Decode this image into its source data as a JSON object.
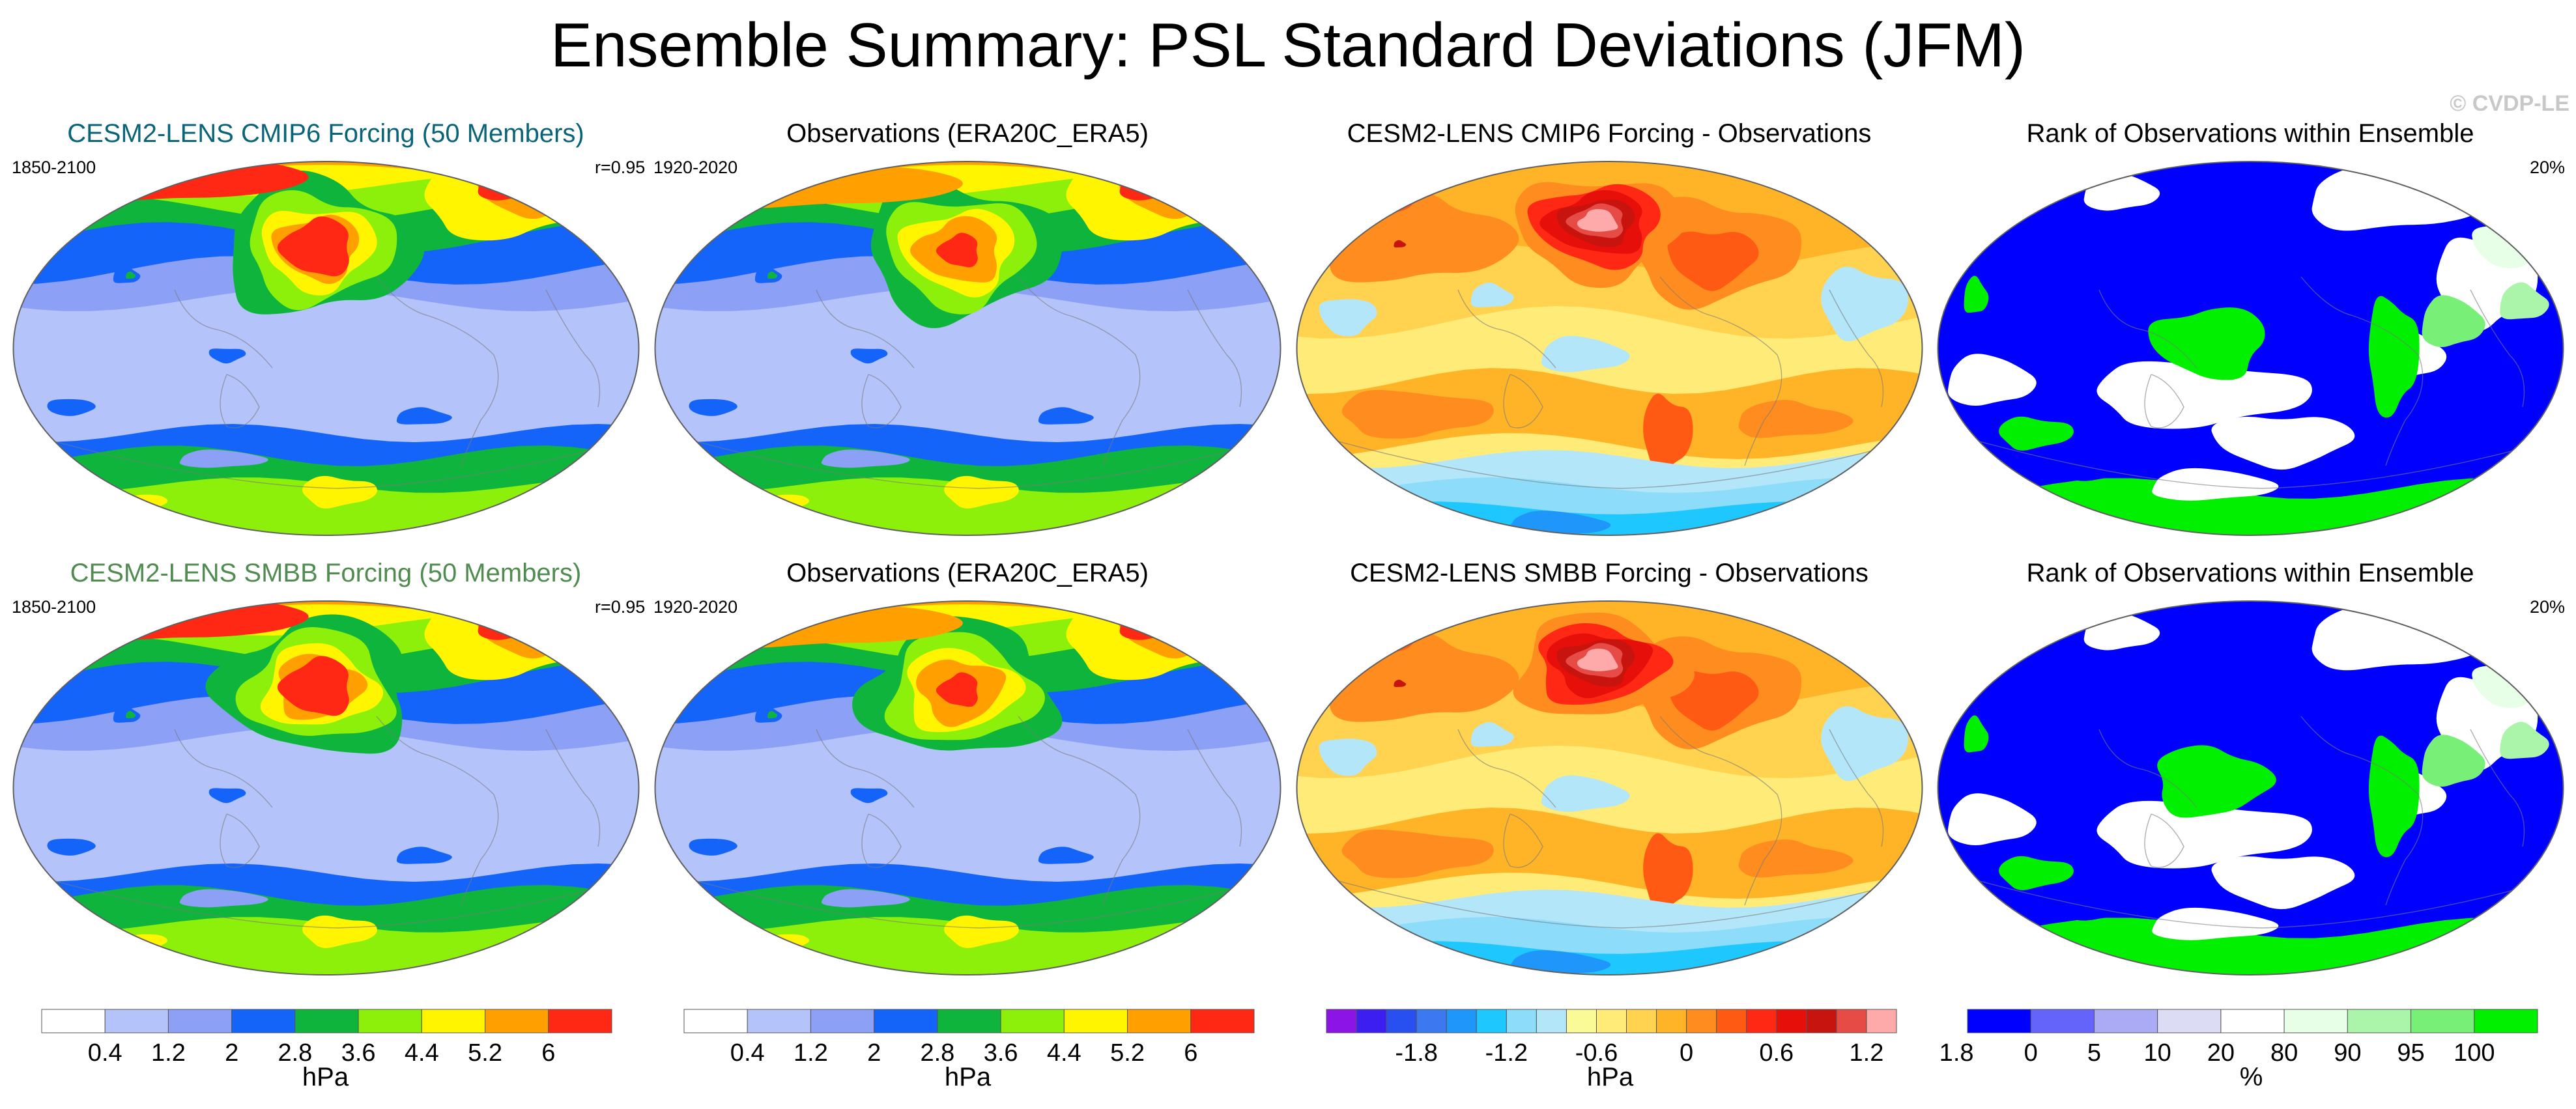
{
  "title": "Ensemble Summary: PSL Standard Deviations (JFM)",
  "watermark": "© CVDP-LE",
  "colors": {
    "std_scale": [
      "#ffffff",
      "#b4c3fa",
      "#8ca0f5",
      "#1464fa",
      "#0fb43c",
      "#8cf00a",
      "#fff500",
      "#ffa000",
      "#ff2814"
    ],
    "diff_scale": [
      "#8c14e6",
      "#3c1ef0",
      "#2850f0",
      "#3c78f0",
      "#1e96fa",
      "#1ec8ff",
      "#8cdcfa",
      "#b4e6fa",
      "#fafa96",
      "#ffeb78",
      "#ffd250",
      "#ffb428",
      "#ff8c1e",
      "#ff5a14",
      "#ff2814",
      "#e60f0a",
      "#c8140f",
      "#e64b46",
      "#ffaaaa"
    ],
    "rank_scale": [
      "#0000ff",
      "#6464fa",
      "#aaaaf5",
      "#dcdcf5",
      "#ffffff",
      "#e6ffe6",
      "#aaf5aa",
      "#78f078",
      "#00f000"
    ],
    "title_row1": "#0a6478",
    "title_row2": "#508c50"
  },
  "panels": [
    {
      "title": "CESM2-LENS CMIP6 Forcing (50 Members)",
      "left": "1850-2100",
      "right": "r=0.95",
      "kind": "std",
      "variant": "model"
    },
    {
      "title": "Observations (ERA20C_ERA5)",
      "left": "1920-2020",
      "right": "",
      "kind": "std",
      "variant": "obs"
    },
    {
      "title": "CESM2-LENS CMIP6 Forcing - Observations",
      "left": "",
      "right": "",
      "kind": "diff",
      "variant": "diff"
    },
    {
      "title": "Rank of Observations within Ensemble",
      "left": "",
      "right": "20%",
      "kind": "rank",
      "variant": "rank"
    },
    {
      "title": "CESM2-LENS SMBB Forcing (50 Members)",
      "left": "1850-2100",
      "right": "r=0.95",
      "kind": "std",
      "variant": "model"
    },
    {
      "title": "Observations (ERA20C_ERA5)",
      "left": "1920-2020",
      "right": "",
      "kind": "std",
      "variant": "obs"
    },
    {
      "title": "CESM2-LENS SMBB Forcing - Observations",
      "left": "",
      "right": "",
      "kind": "diff",
      "variant": "diff"
    },
    {
      "title": "Rank of Observations within Ensemble",
      "left": "",
      "right": "20%",
      "kind": "rank",
      "variant": "rank"
    }
  ],
  "colorbars": [
    {
      "unit": "hPa",
      "ticks": [
        "0.4",
        "1.2",
        "2",
        "2.8",
        "3.6",
        "4.4",
        "5.2",
        "6"
      ]
    },
    {
      "unit": "hPa",
      "ticks": [
        "0.4",
        "1.2",
        "2",
        "2.8",
        "3.6",
        "4.4",
        "5.2",
        "6"
      ]
    },
    {
      "unit": "hPa",
      "ticks": [
        "-1.8",
        "-1.2",
        "-0.6",
        "0",
        "0.6",
        "1.2",
        "1.8"
      ]
    },
    {
      "unit": "%",
      "ticks": [
        "0",
        "5",
        "10",
        "20",
        "80",
        "90",
        "95",
        "100"
      ]
    }
  ],
  "chart_data": [
    {
      "type": "heatmap",
      "title": "CESM2-LENS CMIP6 Forcing (50 Members)",
      "period": "1850-2100",
      "pattern_correlation": 0.95,
      "unit": "hPa",
      "contour_levels": [
        0.4,
        0.8,
        1.2,
        1.6,
        2,
        2.4,
        2.8,
        3.2,
        3.6,
        4,
        4.4,
        4.8,
        5.2,
        5.6,
        6
      ]
    },
    {
      "type": "heatmap",
      "title": "Observations (ERA20C_ERA5)",
      "period": "1920-2020",
      "unit": "hPa",
      "contour_levels": [
        0.4,
        0.8,
        1.2,
        1.6,
        2,
        2.4,
        2.8,
        3.2,
        3.6,
        4,
        4.4,
        4.8,
        5.2,
        5.6,
        6
      ]
    },
    {
      "type": "heatmap",
      "title": "CESM2-LENS CMIP6 Forcing - Observations",
      "unit": "hPa",
      "contour_levels": [
        -1.8,
        -1.6,
        -1.4,
        -1.2,
        -1,
        -0.8,
        -0.6,
        -0.4,
        -0.2,
        0,
        0.2,
        0.4,
        0.6,
        0.8,
        1,
        1.2,
        1.4,
        1.6,
        1.8
      ]
    },
    {
      "type": "heatmap",
      "title": "Rank of Observations within Ensemble",
      "unit": "%",
      "summary": "20%",
      "contour_levels": [
        0,
        5,
        10,
        20,
        80,
        90,
        95,
        100
      ]
    },
    {
      "type": "heatmap",
      "title": "CESM2-LENS SMBB Forcing (50 Members)",
      "period": "1850-2100",
      "pattern_correlation": 0.95,
      "unit": "hPa",
      "contour_levels": [
        0.4,
        0.8,
        1.2,
        1.6,
        2,
        2.4,
        2.8,
        3.2,
        3.6,
        4,
        4.4,
        4.8,
        5.2,
        5.6,
        6
      ]
    },
    {
      "type": "heatmap",
      "title": "Observations (ERA20C_ERA5)",
      "period": "1920-2020",
      "unit": "hPa",
      "contour_levels": [
        0.4,
        0.8,
        1.2,
        1.6,
        2,
        2.4,
        2.8,
        3.2,
        3.6,
        4,
        4.4,
        4.8,
        5.2,
        5.6,
        6
      ]
    },
    {
      "type": "heatmap",
      "title": "CESM2-LENS SMBB Forcing - Observations",
      "unit": "hPa",
      "contour_levels": [
        -1.8,
        -1.6,
        -1.4,
        -1.2,
        -1,
        -0.8,
        -0.6,
        -0.4,
        -0.2,
        0,
        0.2,
        0.4,
        0.6,
        0.8,
        1,
        1.2,
        1.4,
        1.6,
        1.8
      ]
    },
    {
      "type": "heatmap",
      "title": "Rank of Observations within Ensemble",
      "unit": "%",
      "summary": "20%",
      "contour_levels": [
        0,
        5,
        10,
        20,
        80,
        90,
        95,
        100
      ]
    }
  ]
}
